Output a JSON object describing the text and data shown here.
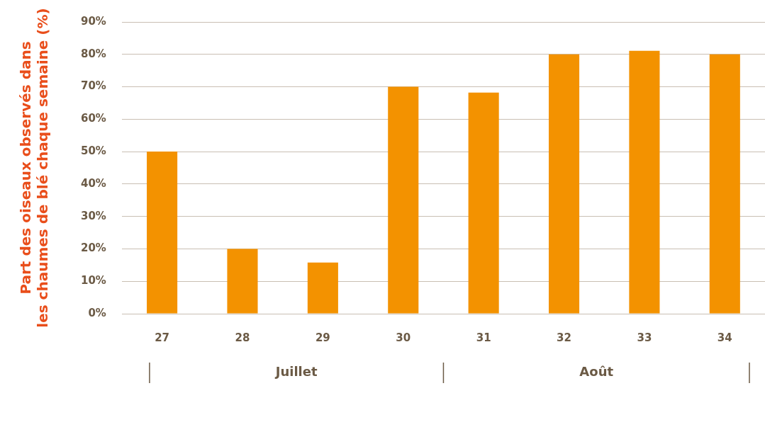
{
  "chart_data": {
    "type": "bar",
    "ylabel": "Part des oiseaux observés dans les chaumes de blé chaque semaine (%)",
    "categories": [
      "27",
      "28",
      "29",
      "30",
      "31",
      "32",
      "33",
      "34"
    ],
    "values": [
      50,
      20,
      15.8,
      70,
      68.2,
      80,
      81.1,
      80
    ],
    "color": "#f39200",
    "ylim": [
      0,
      90
    ],
    "yticks": [
      {
        "value": 0,
        "label": "0%"
      },
      {
        "value": 10,
        "label": "10%"
      },
      {
        "value": 20,
        "label": "20%"
      },
      {
        "value": 30,
        "label": "30%"
      },
      {
        "value": 40,
        "label": "40%"
      },
      {
        "value": 50,
        "label": "50%"
      },
      {
        "value": 60,
        "label": "60%"
      },
      {
        "value": 70,
        "label": "70%"
      },
      {
        "value": 80,
        "label": "80%"
      },
      {
        "value": 90,
        "label": "90%"
      }
    ],
    "grid": "y",
    "annotations": [
      "Juillet",
      "Août"
    ]
  }
}
